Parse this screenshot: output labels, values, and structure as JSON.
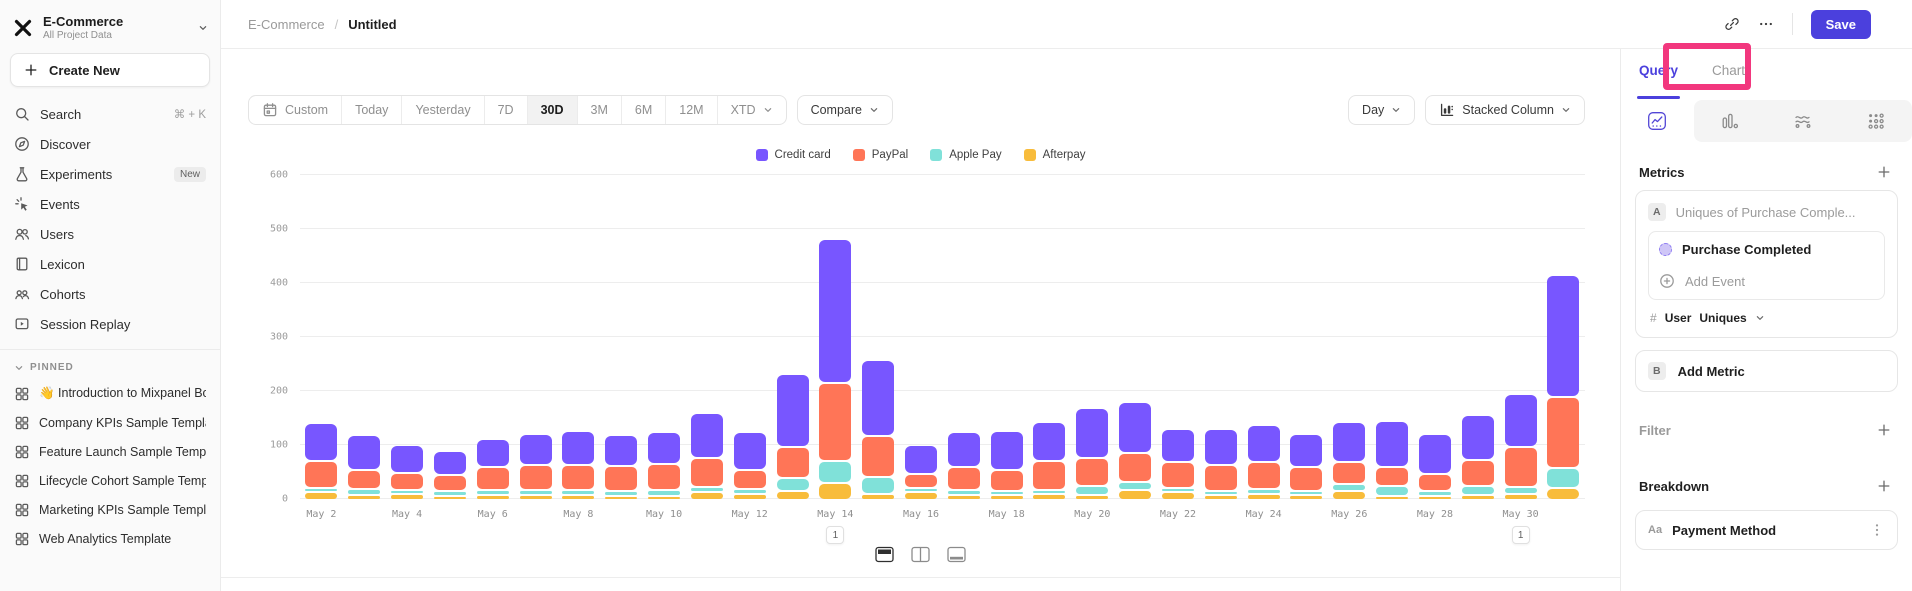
{
  "sidebar": {
    "project": {
      "name": "E-Commerce",
      "subtitle": "All Project Data"
    },
    "create_new_label": "Create New",
    "nav": [
      {
        "icon": "search",
        "label": "Search",
        "shortcut": "⌘ + K"
      },
      {
        "icon": "discover",
        "label": "Discover"
      },
      {
        "icon": "experiments",
        "label": "Experiments",
        "badge": "New"
      },
      {
        "icon": "events",
        "label": "Events"
      },
      {
        "icon": "users",
        "label": "Users"
      },
      {
        "icon": "lexicon",
        "label": "Lexicon"
      },
      {
        "icon": "cohorts",
        "label": "Cohorts"
      },
      {
        "icon": "session-replay",
        "label": "Session Replay"
      }
    ],
    "pinned_header": "PINNED",
    "pinned": [
      "👋 Introduction to Mixpanel Bo",
      "Company KPIs Sample Templat",
      "Feature Launch Sample Templa",
      "Lifecycle Cohort Sample Temp",
      "Marketing KPIs Sample Templat",
      "Web Analytics Template"
    ]
  },
  "topbar": {
    "breadcrumb": [
      "E-Commerce",
      "Untitled"
    ],
    "separator": "/",
    "save_label": "Save"
  },
  "controls": {
    "date_ranges": [
      "Custom",
      "Today",
      "Yesterday",
      "7D",
      "30D",
      "3M",
      "6M",
      "12M",
      "XTD"
    ],
    "active_range": "30D",
    "compare_label": "Compare",
    "granularity": "Day",
    "chart_type": "Stacked Column"
  },
  "right_panel": {
    "tabs": [
      "Query",
      "Chart"
    ],
    "active_tab": "Query",
    "view_tabs": [
      {
        "icon": "insights",
        "active": true
      },
      {
        "icon": "funnels",
        "active": false
      },
      {
        "icon": "flows",
        "active": false
      },
      {
        "icon": "retention",
        "active": false
      }
    ],
    "metrics_header": "Metrics",
    "metric_a": {
      "chip": "A",
      "placeholder": "Uniques of Purchase Comple...",
      "event": "Purchase Completed",
      "add_event": "Add Event",
      "count_prefix": "#",
      "entity": "User",
      "aggregation": "Uniques"
    },
    "metric_b": {
      "chip": "B",
      "label": "Add Metric"
    },
    "filter_header": "Filter",
    "breakdown_header": "Breakdown",
    "breakdown_item": {
      "chip": "Aa",
      "label": "Payment Method"
    }
  },
  "chart_data": {
    "type": "bar",
    "stacked": true,
    "title": "",
    "xlabel": "",
    "ylabel": "",
    "ylim": [
      0,
      600
    ],
    "yticks": [
      0,
      100,
      200,
      300,
      400,
      500,
      600
    ],
    "grid": "horizontal",
    "legend_position": "top",
    "x": [
      "May 2",
      "May 3",
      "May 4",
      "May 5",
      "May 6",
      "May 7",
      "May 8",
      "May 9",
      "May 10",
      "May 11",
      "May 12",
      "May 13",
      "May 14",
      "May 15",
      "May 16",
      "May 17",
      "May 18",
      "May 19",
      "May 20",
      "May 21",
      "May 22",
      "May 23",
      "May 24",
      "May 25",
      "May 26",
      "May 27",
      "May 28",
      "May 29",
      "May 30",
      "May 31"
    ],
    "tick_labels": [
      "May 2",
      "May 4",
      "May 6",
      "May 8",
      "May 10",
      "May 12",
      "May 14",
      "May 16",
      "May 18",
      "May 20",
      "May 22",
      "May 24",
      "May 26",
      "May 28",
      "May 30"
    ],
    "series": [
      {
        "name": "Credit card",
        "color": "#7856FF",
        "values": [
          70,
          65,
          53,
          45,
          52,
          57,
          62,
          58,
          60,
          84,
          71,
          135,
          267,
          140,
          53,
          66,
          72,
          72,
          92,
          95,
          61,
          68,
          68,
          62,
          75,
          85,
          75,
          83,
          98,
          226
        ]
      },
      {
        "name": "PayPal",
        "color": "#FF7557",
        "values": [
          50,
          35,
          30,
          30,
          42,
          47,
          47,
          46,
          48,
          53,
          35,
          58,
          143,
          77,
          26,
          42,
          39,
          53,
          52,
          54,
          48,
          47,
          51,
          43,
          41,
          36,
          31,
          48,
          75,
          132
        ]
      },
      {
        "name": "Apple Pay",
        "color": "#80E1D9",
        "values": [
          8,
          10,
          6,
          5,
          8,
          8,
          9,
          8,
          10,
          9,
          8,
          23,
          41,
          30,
          5,
          5,
          4,
          8,
          17,
          14,
          3,
          6,
          8,
          8,
          12,
          17,
          7,
          16,
          12,
          37
        ]
      },
      {
        "name": "Afterpay",
        "color": "#F8BC3B",
        "values": [
          14,
          10,
          11,
          8,
          10,
          10,
          9,
          8,
          8,
          15,
          12,
          17,
          32,
          12,
          14,
          10,
          9,
          11,
          9,
          19,
          14,
          9,
          12,
          9,
          17,
          6,
          8,
          10,
          12,
          22
        ]
      }
    ],
    "annotations": [
      {
        "x": "May 14",
        "label": "1"
      },
      {
        "x": "May 30",
        "label": "1"
      }
    ]
  }
}
